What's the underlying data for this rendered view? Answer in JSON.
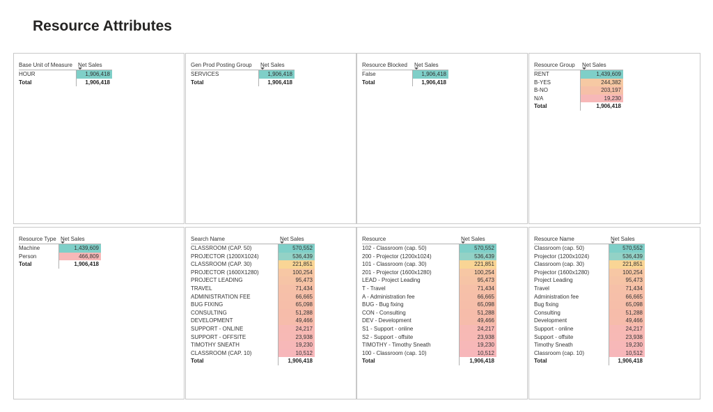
{
  "page_title": "Resource Attributes",
  "colors": {
    "teal": "#7fcfc8",
    "orange": "#f9cf96",
    "salmon": "#f4b4a7",
    "pink": "#f7b8b8"
  },
  "panels": [
    {
      "id": "base-unit",
      "col_label": "Base Unit of Measure",
      "val_label": "Net Sales",
      "rows": [
        {
          "label": "HOUR",
          "value": "1,906,418",
          "color": "#7fcfc8"
        }
      ],
      "total_label": "Total",
      "total_value": "1,906,418"
    },
    {
      "id": "gen-prod",
      "col_label": "Gen Prod Posting Group",
      "val_label": "Net Sales",
      "rows": [
        {
          "label": "SERVICES",
          "value": "1,906,418",
          "color": "#7fcfc8"
        }
      ],
      "total_label": "Total",
      "total_value": "1,906,418"
    },
    {
      "id": "res-blocked",
      "col_label": "Resource Blocked",
      "val_label": "Net Sales",
      "rows": [
        {
          "label": "False",
          "value": "1,906,418",
          "color": "#7fcfc8"
        }
      ],
      "total_label": "Total",
      "total_value": "1,906,418"
    },
    {
      "id": "res-group",
      "col_label": "Resource Group",
      "val_label": "Net Sales",
      "rows": [
        {
          "label": "RENT",
          "value": "1,439,609",
          "color": "#7fcfc8"
        },
        {
          "label": "B-YES",
          "value": "244,382",
          "color": "#f6c9a3"
        },
        {
          "label": "B-NO",
          "value": "203,197",
          "color": "#f6c0a8"
        },
        {
          "label": "N/A",
          "value": "19,230",
          "color": "#f7b8b8"
        }
      ],
      "total_label": "Total",
      "total_value": "1,906,418"
    },
    {
      "id": "res-type",
      "col_label": "Resource Type",
      "val_label": "Net Sales",
      "rows": [
        {
          "label": "Machine",
          "value": "1,439,609",
          "color": "#7fcfc8"
        },
        {
          "label": "Person",
          "value": "466,809",
          "color": "#f7b8b8"
        }
      ],
      "total_label": "Total",
      "total_value": "1,906,418"
    },
    {
      "id": "search-name",
      "col_label": "Search Name",
      "val_label": "Net Sales",
      "rows": [
        {
          "label": "CLASSROOM (CAP. 50)",
          "value": "570,552",
          "color": "#7fcfc8"
        },
        {
          "label": "PROJECTOR (1200X1024)",
          "value": "536,439",
          "color": "#93d2c6"
        },
        {
          "label": "CLASSROOM (CAP. 30)",
          "value": "221,851",
          "color": "#f9d595"
        },
        {
          "label": "PROJECTOR (1600X1280)",
          "value": "100,254",
          "color": "#f7c7a4"
        },
        {
          "label": "PROJECT LEADING",
          "value": "95,473",
          "color": "#f6c4a6"
        },
        {
          "label": "TRAVEL",
          "value": "71,434",
          "color": "#f6c0a8"
        },
        {
          "label": "ADMINISTRATION FEE",
          "value": "66,665",
          "color": "#f6bfa9"
        },
        {
          "label": "BUG FIXING",
          "value": "65,098",
          "color": "#f6bea9"
        },
        {
          "label": "CONSULTING",
          "value": "51,288",
          "color": "#f6bcaa"
        },
        {
          "label": "DEVELOPMENT",
          "value": "49,466",
          "color": "#f6bcab"
        },
        {
          "label": "SUPPORT - ONLINE",
          "value": "24,217",
          "color": "#f7b9b4"
        },
        {
          "label": "SUPPORT - OFFSITE",
          "value": "23,938",
          "color": "#f7b9b5"
        },
        {
          "label": "TIMOTHY SNEATH",
          "value": "19,230",
          "color": "#f7b8b8"
        },
        {
          "label": "CLASSROOM (CAP. 10)",
          "value": "10,512",
          "color": "#f7b7ba"
        }
      ],
      "total_label": "Total",
      "total_value": "1,906,418"
    },
    {
      "id": "resource",
      "col_label": "Resource",
      "val_label": "Net Sales",
      "rows": [
        {
          "label": "102 - Classroom (cap. 50)",
          "value": "570,552",
          "color": "#7fcfc8"
        },
        {
          "label": "200 - Projector (1200x1024)",
          "value": "536,439",
          "color": "#93d2c6"
        },
        {
          "label": "101 - Classroom (cap. 30)",
          "value": "221,851",
          "color": "#f9d595"
        },
        {
          "label": "201 - Projector (1600x1280)",
          "value": "100,254",
          "color": "#f7c7a4"
        },
        {
          "label": "LEAD - Project Leading",
          "value": "95,473",
          "color": "#f6c4a6"
        },
        {
          "label": "T - Travel",
          "value": "71,434",
          "color": "#f6c0a8"
        },
        {
          "label": "A - Administration fee",
          "value": "66,665",
          "color": "#f6bfa9"
        },
        {
          "label": "BUG - Bug fixing",
          "value": "65,098",
          "color": "#f6bea9"
        },
        {
          "label": "CON - Consulting",
          "value": "51,288",
          "color": "#f6bcaa"
        },
        {
          "label": "DEV - Development",
          "value": "49,466",
          "color": "#f6bcab"
        },
        {
          "label": "S1 - Support - online",
          "value": "24,217",
          "color": "#f7b9b4"
        },
        {
          "label": "S2 - Support - offsite",
          "value": "23,938",
          "color": "#f7b9b5"
        },
        {
          "label": "TIMOTHY - Timothy Sneath",
          "value": "19,230",
          "color": "#f7b8b8"
        },
        {
          "label": "100 - Classroom (cap. 10)",
          "value": "10,512",
          "color": "#f7b7ba"
        }
      ],
      "total_label": "Total",
      "total_value": "1,906,418"
    },
    {
      "id": "resource-name",
      "col_label": "Resource Name",
      "val_label": "Net Sales",
      "rows": [
        {
          "label": "Classroom (cap. 50)",
          "value": "570,552",
          "color": "#7fcfc8"
        },
        {
          "label": "Projector (1200x1024)",
          "value": "536,439",
          "color": "#93d2c6"
        },
        {
          "label": "Classroom (cap. 30)",
          "value": "221,851",
          "color": "#f9d595"
        },
        {
          "label": "Projector (1600x1280)",
          "value": "100,254",
          "color": "#f7c7a4"
        },
        {
          "label": "Project Leading",
          "value": "95,473",
          "color": "#f6c4a6"
        },
        {
          "label": "Travel",
          "value": "71,434",
          "color": "#f6c0a8"
        },
        {
          "label": "Administration fee",
          "value": "66,665",
          "color": "#f6bfa9"
        },
        {
          "label": "Bug fixing",
          "value": "65,098",
          "color": "#f6bea9"
        },
        {
          "label": "Consulting",
          "value": "51,288",
          "color": "#f6bcaa"
        },
        {
          "label": "Development",
          "value": "49,466",
          "color": "#f6bcab"
        },
        {
          "label": "Support - online",
          "value": "24,217",
          "color": "#f7b9b4"
        },
        {
          "label": "Support - offsite",
          "value": "23,938",
          "color": "#f7b9b5"
        },
        {
          "label": "Timothy Sneath",
          "value": "19,230",
          "color": "#f7b8b8"
        },
        {
          "label": "Classroom (cap. 10)",
          "value": "10,512",
          "color": "#f7b7ba"
        }
      ],
      "total_label": "Total",
      "total_value": "1,906,418"
    }
  ]
}
